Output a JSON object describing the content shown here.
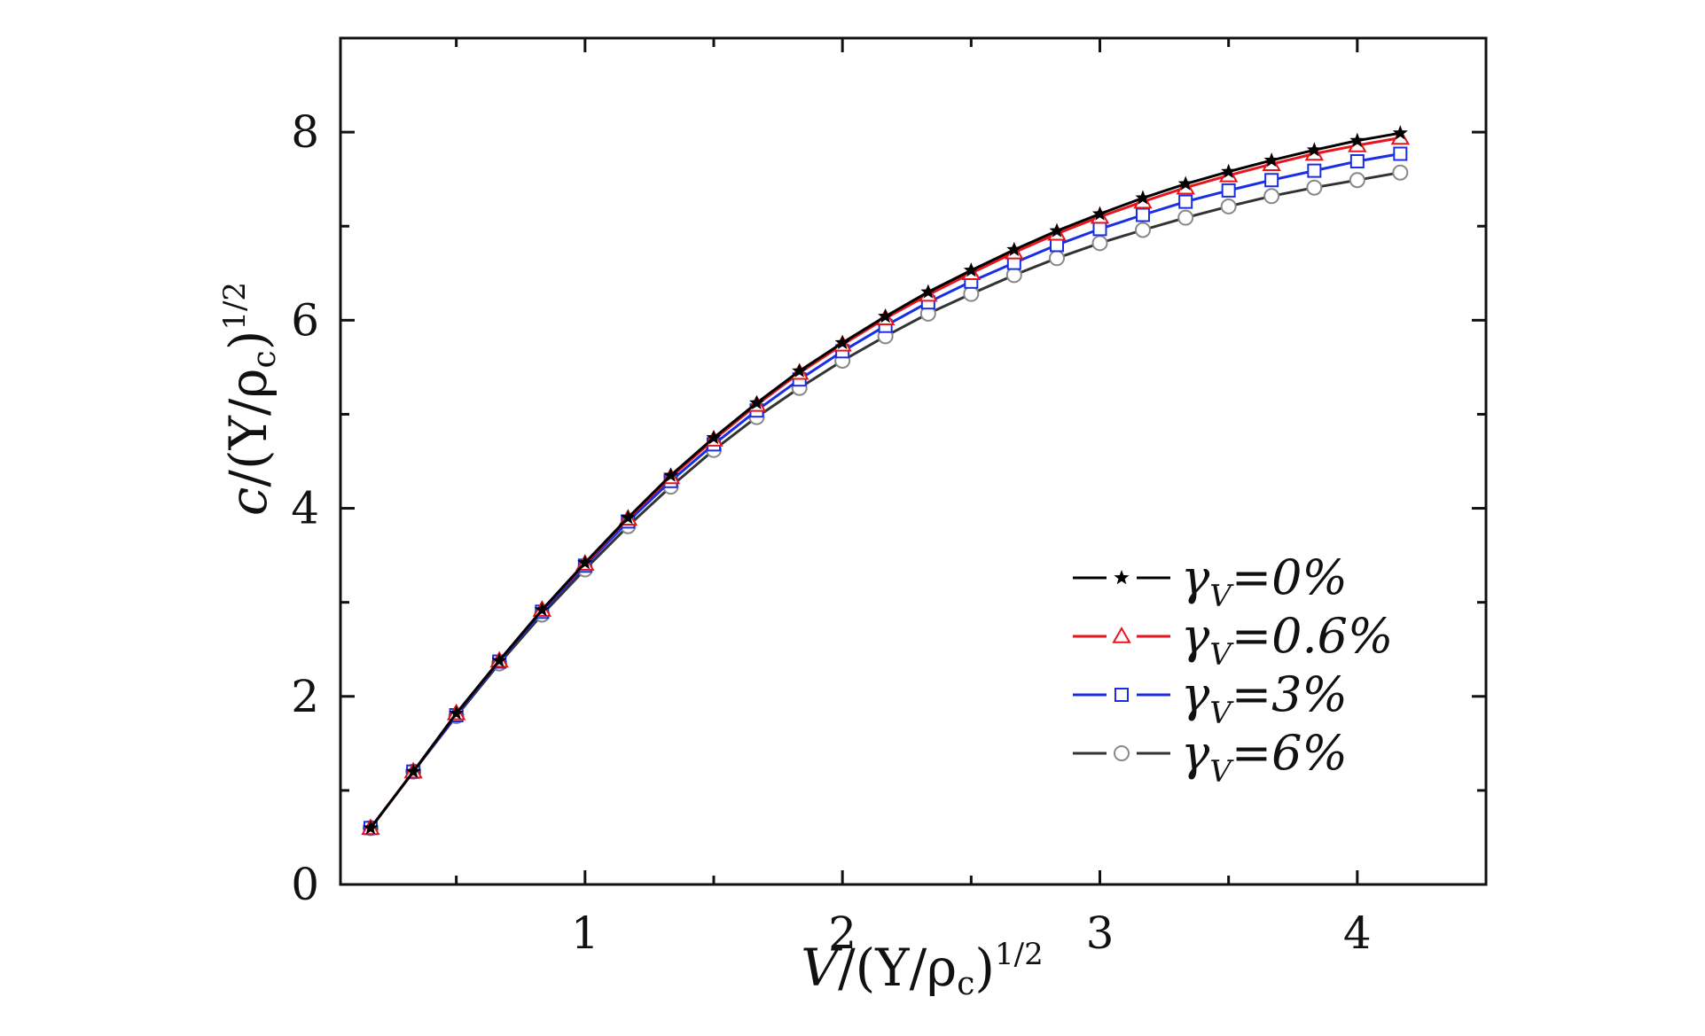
{
  "chart_data": {
    "type": "line",
    "xlabel": {
      "main": "V",
      "rest": "/(Y/ρ",
      "sub": "c",
      "close": ")",
      "sup": "1/2"
    },
    "ylabel": {
      "main": "c",
      "rest": "/(Y/ρ",
      "sub": "c",
      "close": ")",
      "sup": "1/2"
    },
    "xlim": [
      0.05,
      4.5
    ],
    "ylim": [
      0,
      9
    ],
    "xticks": [
      1,
      2,
      3,
      4
    ],
    "yticks": [
      0,
      2,
      4,
      6,
      8
    ],
    "xtick_labels": [
      "1",
      "2",
      "3",
      "4"
    ],
    "ytick_labels": [
      "0",
      "2",
      "4",
      "6",
      "8"
    ],
    "grid": false,
    "legend_position": "lower-right",
    "x": [
      0.167,
      0.333,
      0.5,
      0.667,
      0.833,
      1.0,
      1.167,
      1.333,
      1.5,
      1.667,
      1.833,
      2.0,
      2.167,
      2.333,
      2.5,
      2.667,
      2.833,
      3.0,
      3.167,
      3.333,
      3.5,
      3.667,
      3.833,
      4.0,
      4.167
    ],
    "series": [
      {
        "name_symbol": "γ",
        "name_sub": "V",
        "name_value": "=0%",
        "color": "#000000",
        "marker": "star",
        "values": [
          0.6,
          1.2,
          1.82,
          2.38,
          2.92,
          3.42,
          3.9,
          4.35,
          4.75,
          5.12,
          5.46,
          5.76,
          6.04,
          6.3,
          6.53,
          6.75,
          6.95,
          7.13,
          7.3,
          7.45,
          7.58,
          7.7,
          7.81,
          7.91,
          7.99
        ]
      },
      {
        "name_symbol": "γ",
        "name_sub": "V",
        "name_value": "=0.6%",
        "color": "#e8141c",
        "marker": "triangle",
        "values": [
          0.6,
          1.2,
          1.82,
          2.38,
          2.92,
          3.41,
          3.89,
          4.33,
          4.73,
          5.1,
          5.44,
          5.74,
          6.02,
          6.27,
          6.5,
          6.72,
          6.92,
          7.1,
          7.26,
          7.41,
          7.54,
          7.66,
          7.77,
          7.86,
          7.94
        ]
      },
      {
        "name_symbol": "γ",
        "name_sub": "V",
        "name_value": "=3%",
        "color": "#1a2ee6",
        "marker": "square",
        "values": [
          0.6,
          1.2,
          1.8,
          2.37,
          2.9,
          3.39,
          3.86,
          4.29,
          4.68,
          5.04,
          5.37,
          5.67,
          5.94,
          6.19,
          6.41,
          6.61,
          6.8,
          6.97,
          7.12,
          7.26,
          7.38,
          7.49,
          7.59,
          7.69,
          7.77
        ]
      },
      {
        "name_symbol": "γ",
        "name_sub": "V",
        "name_value": "=6%",
        "color": "#333333",
        "marker": "circle",
        "marker_color": "#888888",
        "values": [
          0.6,
          1.2,
          1.79,
          2.35,
          2.87,
          3.35,
          3.81,
          4.23,
          4.62,
          4.97,
          5.28,
          5.57,
          5.83,
          6.07,
          6.28,
          6.48,
          6.66,
          6.82,
          6.96,
          7.09,
          7.21,
          7.32,
          7.41,
          7.49,
          7.57
        ]
      }
    ]
  }
}
